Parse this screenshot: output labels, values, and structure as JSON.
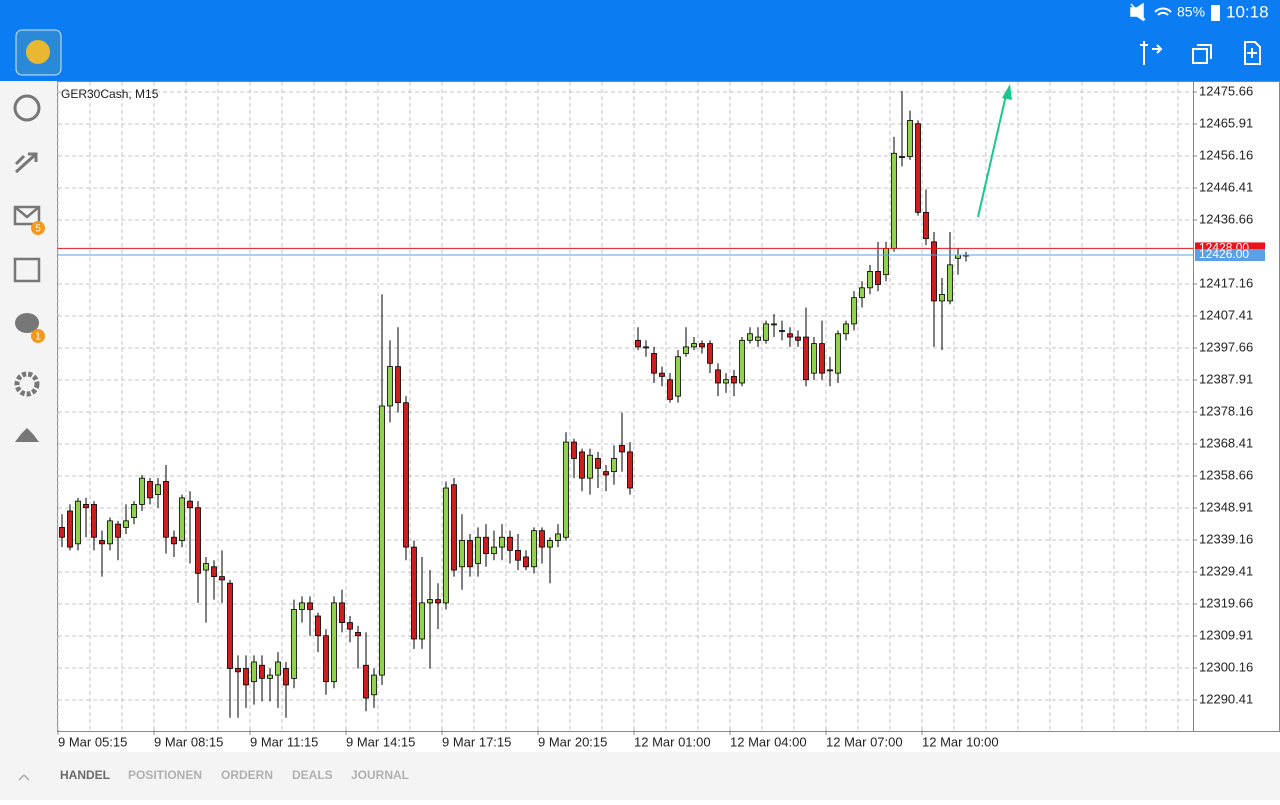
{
  "status_bar": {
    "battery": "85%",
    "time": "10:18"
  },
  "sidebar": {
    "badges": [
      "5",
      "1"
    ]
  },
  "tabs": [
    "HANDEL",
    "POSITIONEN",
    "ORDERN",
    "DEALS",
    "JOURNAL"
  ],
  "chart_data": {
    "type": "candlestick",
    "title": "GER30Cash, M15",
    "open": [
      12343,
      12348,
      12338,
      12350,
      12350,
      12339,
      12338,
      12344,
      12343,
      12346,
      12350,
      12357,
      12353,
      12357,
      12340,
      12339,
      12351,
      12349,
      12330,
      12331,
      12328,
      12326,
      12300,
      12300,
      12296,
      12301,
      12297,
      12298,
      12300,
      12297,
      12318,
      12320,
      12316,
      12310,
      12296,
      12320,
      12314,
      12311,
      12301,
      12292,
      12298,
      12380,
      12392,
      12381,
      12337,
      12309,
      12320,
      12321,
      12320,
      12356,
      12331,
      12339,
      12332,
      12340,
      12335,
      12337,
      12340,
      12336,
      12334,
      12331,
      12342,
      12337,
      12339,
      12340,
      12369,
      12366,
      12358,
      12364,
      12360,
      12360,
      12368,
      12366,
      12400,
      12398,
      12396,
      12390,
      12388,
      12383,
      12396,
      12398,
      12399,
      12399,
      12391,
      12387,
      12389,
      12387,
      12400,
      12400,
      12400,
      12405,
      12403,
      12402,
      12401,
      12401,
      12390,
      12399,
      12391,
      12390,
      12402,
      12405,
      12413,
      12416,
      12421,
      12420,
      12428,
      12456,
      12456,
      12466,
      12439,
      12430,
      12412,
      12412,
      12425,
      12426
    ],
    "high": [
      12347,
      12350,
      12352,
      12352,
      12351,
      12342,
      12346,
      12345,
      12350,
      12351,
      12359,
      12358,
      12358,
      12362,
      12342,
      12353,
      12354,
      12351,
      12334,
      12333,
      12336,
      12327,
      12304,
      12304,
      12304,
      12304,
      12300,
      12305,
      12302,
      12321,
      12322,
      12322,
      12317,
      12312,
      12322,
      12324,
      12316,
      12313,
      12311,
      12300,
      12414,
      12400,
      12404,
      12383,
      12339,
      12334,
      12330,
      12326,
      12357,
      12358,
      12347,
      12341,
      12343,
      12344,
      12342,
      12344,
      12342,
      12341,
      12336,
      12343,
      12343,
      12340,
      12344,
      12372,
      12370,
      12367,
      12367,
      12366,
      12362,
      12368,
      12378,
      12369,
      12404,
      12400,
      12398,
      12392,
      12390,
      12397,
      12404,
      12401,
      12400,
      12400,
      12393,
      12390,
      12391,
      12401,
      12404,
      12404,
      12406,
      12408,
      12406,
      12404,
      12403,
      12410,
      12401,
      12406,
      12395,
      12403,
      12406,
      12415,
      12418,
      12423,
      12430,
      12430,
      12462,
      12476,
      12470,
      12467,
      12446,
      12433,
      12419,
      12433,
      12428,
      12427
    ],
    "low": [
      12337,
      12336,
      12336,
      12340,
      12336,
      12328,
      12336,
      12333,
      12341,
      12344,
      12348,
      12350,
      12349,
      12335,
      12334,
      12337,
      12332,
      12320,
      12314,
      12321,
      12320,
      12285,
      12285,
      12288,
      12289,
      12290,
      12290,
      12288,
      12285,
      12294,
      12314,
      12310,
      12305,
      12292,
      12294,
      12311,
      12308,
      12300,
      12287,
      12288,
      12295,
      12375,
      12378,
      12333,
      12306,
      12306,
      12300,
      12312,
      12318,
      12328,
      12324,
      12328,
      12328,
      12331,
      12333,
      12333,
      12332,
      12330,
      12330,
      12329,
      12332,
      12326,
      12337,
      12339,
      12358,
      12354,
      12353,
      12355,
      12354,
      12356,
      12360,
      12353,
      12397,
      12395,
      12387,
      12386,
      12381,
      12381,
      12395,
      12397,
      12396,
      12390,
      12383,
      12384,
      12383,
      12386,
      12399,
      12398,
      12399,
      12401,
      12400,
      12398,
      12398,
      12386,
      12388,
      12388,
      12386,
      12387,
      12400,
      12403,
      12410,
      12414,
      12415,
      12418,
      12427,
      12453,
      12455,
      12438,
      12429,
      12398,
      12397,
      12411,
      12420,
      12424
    ],
    "close": [
      12340,
      12337,
      12351,
      12349,
      12340,
      12338,
      12345,
      12340,
      12345,
      12350,
      12358,
      12352,
      12356,
      12340,
      12338,
      12352,
      12349,
      12329,
      12332,
      12328,
      12327,
      12300,
      12299,
      12295,
      12302,
      12297,
      12298,
      12302,
      12295,
      12318,
      12320,
      12318,
      12310,
      12296,
      12320,
      12314,
      12312,
      12310,
      12291,
      12298,
      12380,
      12392,
      12381,
      12337,
      12309,
      12320,
      12321,
      12320,
      12355,
      12330,
      12339,
      12331,
      12340,
      12335,
      12337,
      12340,
      12336,
      12333,
      12331,
      12342,
      12337,
      12339,
      12341,
      12369,
      12364,
      12358,
      12365,
      12361,
      12359,
      12364,
      12366,
      12355,
      12398,
      12398,
      12390,
      12389,
      12382,
      12395,
      12398,
      12399,
      12398,
      12393,
      12387,
      12388,
      12387,
      12400,
      12402,
      12401,
      12405,
      12405,
      12403,
      12401,
      12400,
      12388,
      12399,
      12390,
      12391,
      12402,
      12405,
      12413,
      12416,
      12421,
      12417,
      12428,
      12457,
      12456,
      12467,
      12439,
      12431,
      12412,
      12414,
      12423,
      12426,
      12426
    ],
    "bull_color": "#90d24c",
    "bear_color": "#d01c1c",
    "xlim": [
      -0.5,
      141.375
    ],
    "xticks": [
      {
        "value": 0,
        "label": "9 Mar 05:15"
      },
      {
        "value": 12,
        "label": "9 Mar 08:15"
      },
      {
        "value": 24,
        "label": "9 Mar 11:15"
      },
      {
        "value": 36,
        "label": "9 Mar 14:15"
      },
      {
        "value": 48,
        "label": "9 Mar 17:15"
      },
      {
        "value": 60,
        "label": "9 Mar 20:15"
      },
      {
        "value": 72,
        "label": "12 Mar 01:00"
      },
      {
        "value": 84,
        "label": "12 Mar 04:00"
      },
      {
        "value": 96,
        "label": "12 Mar 07:00"
      },
      {
        "value": 108,
        "label": "12 Mar 10:00"
      }
    ],
    "ylim": [
      12281.27,
      12478.71
    ],
    "yticks": [
      12475.66,
      12465.91,
      12456.16,
      12446.41,
      12436.66,
      12417.16,
      12407.41,
      12397.66,
      12387.91,
      12378.16,
      12368.41,
      12358.66,
      12348.91,
      12339.16,
      12329.41,
      12319.66,
      12309.91,
      12300.16,
      12290.41
    ],
    "grid": true,
    "price_lines": [
      {
        "value": 12428,
        "label": "12428.00",
        "color": "#e8141c"
      },
      {
        "value": 12426,
        "label": "12426.00",
        "color": "#5aa0e6"
      }
    ]
  }
}
